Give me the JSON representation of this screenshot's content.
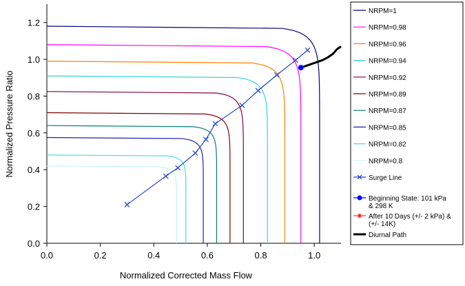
{
  "chart_data": {
    "type": "line",
    "title": "",
    "xlabel": "Normalized Corrected Mass Flow",
    "ylabel": "Normalized Pressure Ratio",
    "xlim": [
      0.0,
      1.1
    ],
    "ylim": [
      0.0,
      1.3
    ],
    "x_ticks": [
      "0.0",
      "0.2",
      "0.4",
      "0.6",
      "0.8",
      "1.0"
    ],
    "y_ticks": [
      "0.0",
      "0.2",
      "0.4",
      "0.6",
      "0.8",
      "1.0",
      "1.2"
    ],
    "grid": false,
    "legend_position": "right",
    "speed_lines": [
      {
        "name": "NRPM=1",
        "color": "#000080",
        "pr_at_zero_flow": 1.18,
        "choke_flow": 1.02
      },
      {
        "name": "NRPM=0.98",
        "color": "#ff00ff",
        "pr_at_zero_flow": 1.08,
        "choke_flow": 0.95
      },
      {
        "name": "NRPM=0.96",
        "color": "#ff7f00",
        "pr_at_zero_flow": 0.99,
        "choke_flow": 0.89
      },
      {
        "name": "NRPM=0.94",
        "color": "#33d6d6",
        "pr_at_zero_flow": 0.91,
        "choke_flow": 0.825
      },
      {
        "name": "NRPM=0.92",
        "color": "#800040",
        "pr_at_zero_flow": 0.825,
        "choke_flow": 0.735
      },
      {
        "name": "NRPM=0.89",
        "color": "#800000",
        "pr_at_zero_flow": 0.71,
        "choke_flow": 0.685
      },
      {
        "name": "NRPM=0.87",
        "color": "#007f70",
        "pr_at_zero_flow": 0.64,
        "choke_flow": 0.635
      },
      {
        "name": "NRPM=0.85",
        "color": "#2020b0",
        "pr_at_zero_flow": 0.575,
        "choke_flow": 0.585
      },
      {
        "name": "NRPM=0.82",
        "color": "#40e0e0",
        "pr_at_zero_flow": 0.48,
        "choke_flow": 0.52
      },
      {
        "name": "NRPM=0.8",
        "color": "#c8f4f4",
        "pr_at_zero_flow": 0.42,
        "choke_flow": 0.485
      }
    ],
    "surge_line": {
      "name": "Surge Line",
      "color": "#1f3fcf",
      "marker": "x",
      "points": [
        [
          0.3,
          0.21
        ],
        [
          0.445,
          0.365
        ],
        [
          0.49,
          0.41
        ],
        [
          0.555,
          0.49
        ],
        [
          0.595,
          0.565
        ],
        [
          0.63,
          0.65
        ],
        [
          0.73,
          0.75
        ],
        [
          0.79,
          0.83
        ],
        [
          0.86,
          0.915
        ],
        [
          0.93,
          0.995
        ],
        [
          0.975,
          1.05
        ]
      ]
    },
    "beginning_state": {
      "name": "Beginning State: 101 kPa & 298 K",
      "name_lines": [
        "Beginning State: 101 kPa",
        "& 298 K"
      ],
      "color": "#0000ff",
      "point": [
        0.95,
        0.955
      ]
    },
    "after_10_days": {
      "name": "After 10 Days (+/- 2 kPa) & (+/- 14K)",
      "name_lines": [
        "After 10 Days (+/- 2 kPa) &",
        "(+/- 14K)"
      ],
      "color": "#ff0000",
      "marker": "asterisk",
      "points": []
    },
    "diurnal_path": {
      "name": "Diurnal Path",
      "color": "#000000",
      "points": [
        [
          0.95,
          0.955
        ],
        [
          0.97,
          0.965
        ],
        [
          1.0,
          0.98
        ],
        [
          1.03,
          0.995
        ],
        [
          1.05,
          1.01
        ],
        [
          1.07,
          1.03
        ],
        [
          1.085,
          1.055
        ],
        [
          1.1,
          1.07
        ]
      ]
    }
  }
}
